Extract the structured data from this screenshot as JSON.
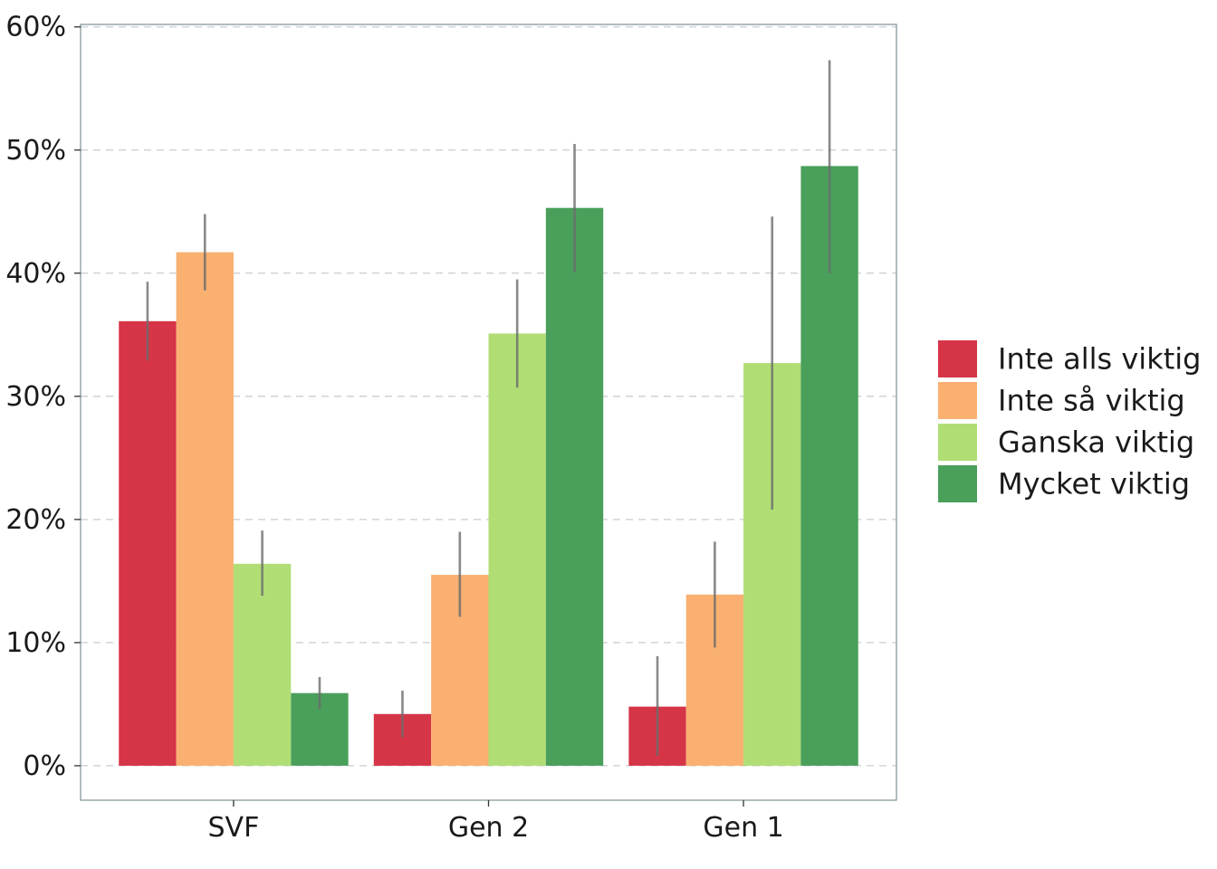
{
  "chart_data": {
    "type": "bar",
    "categories": [
      "SVF",
      "Gen 2",
      "Gen 1"
    ],
    "series": [
      {
        "name": "Inte alls viktig",
        "color": "#d63447",
        "values": [
          36.1,
          4.2,
          4.8
        ],
        "err_low": [
          32.9,
          2.3,
          0.8
        ],
        "err_high": [
          39.3,
          6.1,
          8.9
        ]
      },
      {
        "name": "Inte så viktig",
        "color": "#f9b071",
        "values": [
          41.7,
          15.5,
          13.9
        ],
        "err_low": [
          38.6,
          12.1,
          9.6
        ],
        "err_high": [
          44.8,
          19.0,
          18.2
        ]
      },
      {
        "name": "Ganska viktig",
        "color": "#b0de75",
        "values": [
          16.4,
          35.1,
          32.7
        ],
        "err_low": [
          13.8,
          30.7,
          20.8
        ],
        "err_high": [
          19.1,
          39.5,
          44.6
        ]
      },
      {
        "name": "Mycket viktig",
        "color": "#4a9f5b",
        "values": [
          5.9,
          45.3,
          48.7
        ],
        "err_low": [
          4.6,
          40.1,
          40.0
        ],
        "err_high": [
          7.2,
          50.5,
          57.3
        ]
      }
    ],
    "ylim": [
      -2.8,
      60.2
    ],
    "yticks": [
      0,
      10,
      20,
      30,
      40,
      50,
      60
    ],
    "ytick_labels": [
      "0%",
      "10%",
      "20%",
      "30%",
      "40%",
      "50%",
      "60%"
    ],
    "grid": true,
    "grid_style": "dashed",
    "legend_position": "right",
    "title": "",
    "xlabel": "",
    "ylabel": ""
  }
}
